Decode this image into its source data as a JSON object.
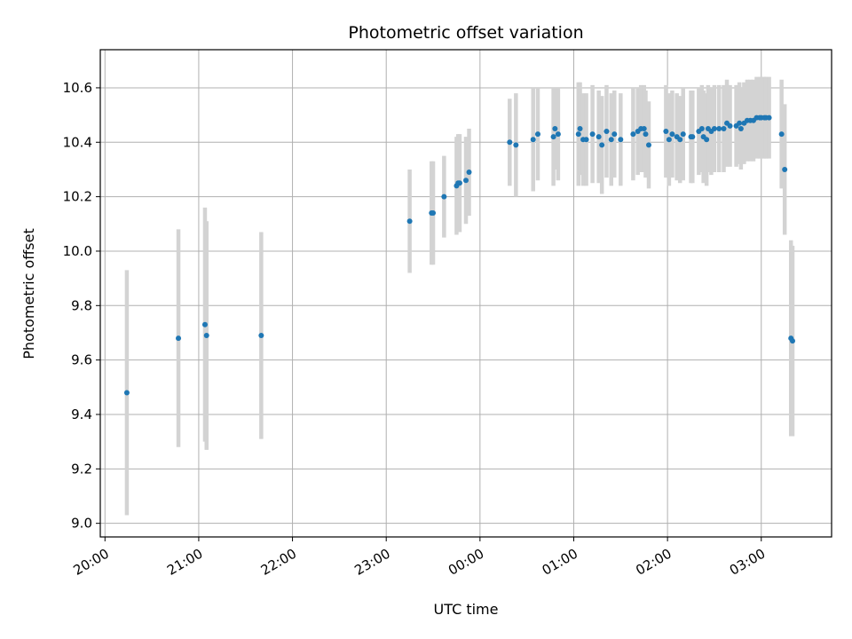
{
  "chart_data": {
    "type": "scatter",
    "title": "Photometric offset variation",
    "xlabel": "UTC time",
    "ylabel": "Photometric offset",
    "xlim": [
      "19:57",
      "27:45"
    ],
    "ylim": [
      8.95,
      10.74
    ],
    "x_ticks": [
      "20:00",
      "21:00",
      "22:00",
      "23:00",
      "00:00",
      "01:00",
      "02:00",
      "03:00"
    ],
    "x_tick_times": [
      "20:00",
      "21:00",
      "22:00",
      "23:00",
      "24:00",
      "25:00",
      "26:00",
      "27:00"
    ],
    "y_ticks": [
      9.0,
      9.2,
      9.4,
      9.6,
      9.8,
      10.0,
      10.2,
      10.4,
      10.6
    ],
    "grid": true,
    "point_color": "#1f77b4",
    "error_color": "#d3d3d3",
    "series": [
      {
        "x": [
          "20:14",
          "20:47",
          "21:04",
          "21:05",
          "21:40",
          "23:15",
          "23:29",
          "23:30",
          "23:37",
          "23:45",
          "23:46",
          "23:47",
          "23:51",
          "23:53",
          "00:19",
          "00:23",
          "00:34",
          "00:37",
          "00:47",
          "00:48",
          "00:50",
          "01:03",
          "01:04",
          "01:06",
          "01:08",
          "01:12",
          "01:16",
          "01:18",
          "01:21",
          "01:24",
          "01:26",
          "01:30",
          "01:38",
          "01:41",
          "01:43",
          "01:45",
          "01:46",
          "01:48",
          "01:59",
          "02:01",
          "02:03",
          "02:06",
          "02:08",
          "02:10",
          "02:15",
          "02:16",
          "02:20",
          "02:22",
          "02:23",
          "02:25",
          "02:26",
          "02:28",
          "02:30",
          "02:33",
          "02:36",
          "02:38",
          "02:40",
          "02:44",
          "02:46",
          "02:47",
          "02:49",
          "02:51",
          "02:53",
          "02:55",
          "02:57",
          "02:59",
          "03:00",
          "03:02",
          "03:03",
          "03:05",
          "03:13",
          "03:15",
          "03:19",
          "03:20"
        ],
        "y": [
          9.48,
          9.68,
          9.73,
          9.69,
          9.69,
          10.11,
          10.14,
          10.14,
          10.2,
          10.24,
          10.25,
          10.25,
          10.26,
          10.29,
          10.4,
          10.39,
          10.41,
          10.43,
          10.42,
          10.45,
          10.43,
          10.43,
          10.45,
          10.41,
          10.41,
          10.43,
          10.42,
          10.39,
          10.44,
          10.41,
          10.43,
          10.41,
          10.43,
          10.44,
          10.45,
          10.45,
          10.43,
          10.39,
          10.44,
          10.41,
          10.43,
          10.42,
          10.41,
          10.43,
          10.42,
          10.42,
          10.44,
          10.45,
          10.42,
          10.41,
          10.45,
          10.44,
          10.45,
          10.45,
          10.45,
          10.47,
          10.46,
          10.46,
          10.47,
          10.45,
          10.47,
          10.48,
          10.48,
          10.48,
          10.49,
          10.49,
          10.49,
          10.49,
          10.49,
          10.49,
          10.43,
          10.3,
          9.68,
          9.67
        ],
        "yerr": [
          0.45,
          0.4,
          0.43,
          0.42,
          0.38,
          0.19,
          0.19,
          0.19,
          0.15,
          0.18,
          0.18,
          0.18,
          0.16,
          0.16,
          0.16,
          0.19,
          0.19,
          0.17,
          0.18,
          0.15,
          0.17,
          0.19,
          0.17,
          0.17,
          0.17,
          0.18,
          0.17,
          0.18,
          0.17,
          0.17,
          0.16,
          0.17,
          0.17,
          0.16,
          0.16,
          0.16,
          0.16,
          0.16,
          0.17,
          0.17,
          0.16,
          0.16,
          0.16,
          0.17,
          0.17,
          0.17,
          0.16,
          0.16,
          0.17,
          0.17,
          0.16,
          0.16,
          0.16,
          0.16,
          0.16,
          0.16,
          0.15,
          0.15,
          0.15,
          0.15,
          0.15,
          0.15,
          0.15,
          0.15,
          0.15,
          0.15,
          0.15,
          0.15,
          0.15,
          0.15,
          0.2,
          0.24,
          0.36,
          0.35
        ]
      }
    ]
  }
}
